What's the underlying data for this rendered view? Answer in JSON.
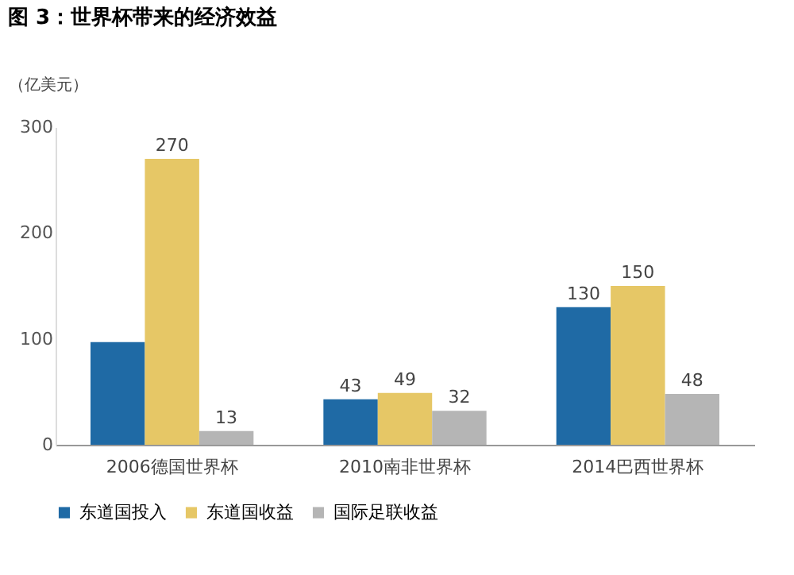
{
  "chart_data": {
    "type": "bar",
    "title": "图 3：世界杯带来的经济效益",
    "ylabel": "（亿美元）",
    "categories": [
      "2006德国世界杯",
      "2010南非世界杯",
      "2014巴西世界杯"
    ],
    "series": [
      {
        "name": "东道国投入",
        "color": "#1f6aa5",
        "values": [
          97,
          43,
          130
        ],
        "value_labels": [
          null,
          "43",
          "130"
        ]
      },
      {
        "name": "东道国收益",
        "color": "#e6c766",
        "values": [
          270,
          49,
          150
        ],
        "value_labels": [
          "270",
          "49",
          "150"
        ]
      },
      {
        "name": "国际足联收益",
        "color": "#b5b5b5",
        "values": [
          13,
          32,
          48
        ],
        "value_labels": [
          "13",
          "32",
          "48"
        ]
      }
    ],
    "ylim": [
      0,
      300
    ],
    "yticks": [
      0,
      100,
      200,
      300
    ],
    "grid": false,
    "legend": "bottom"
  }
}
